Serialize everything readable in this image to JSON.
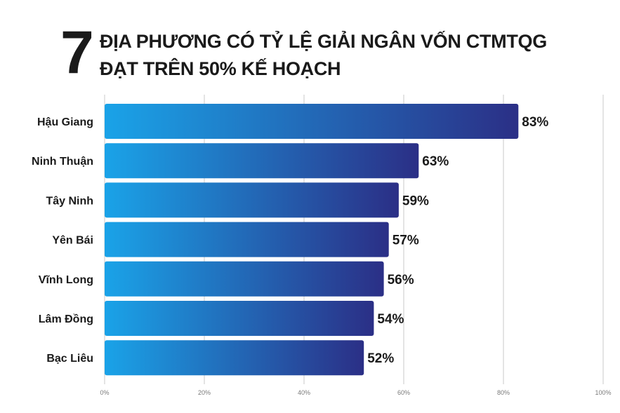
{
  "title": {
    "number": "7",
    "line1": "ĐỊA PHƯƠNG CÓ TỶ LỆ GIẢI NGÂN VỐN CTMTQG",
    "line2": "ĐẠT TRÊN 50% KẾ HOẠCH"
  },
  "colors": {
    "bar_start": "#1aa3e8",
    "bar_end": "#2b2f86",
    "grid": "#c8c8c8",
    "text": "#1a1a1a"
  },
  "chart_data": {
    "type": "bar",
    "orientation": "horizontal",
    "categories": [
      "Hậu Giang",
      "Ninh Thuận",
      "Tây Ninh",
      "Yên Bái",
      "Vĩnh Long",
      "Lâm Đồng",
      "Bạc Liêu"
    ],
    "values": [
      83,
      63,
      59,
      57,
      56,
      54,
      52
    ],
    "value_labels": [
      "83%",
      "63%",
      "59%",
      "57%",
      "56%",
      "54%",
      "52%"
    ],
    "xlim": [
      0,
      100
    ],
    "x_ticks": [
      0,
      20,
      40,
      60,
      80,
      100
    ],
    "x_tick_labels": [
      "0%",
      "20%",
      "40%",
      "60%",
      "80%",
      "100%"
    ],
    "grid": true
  }
}
